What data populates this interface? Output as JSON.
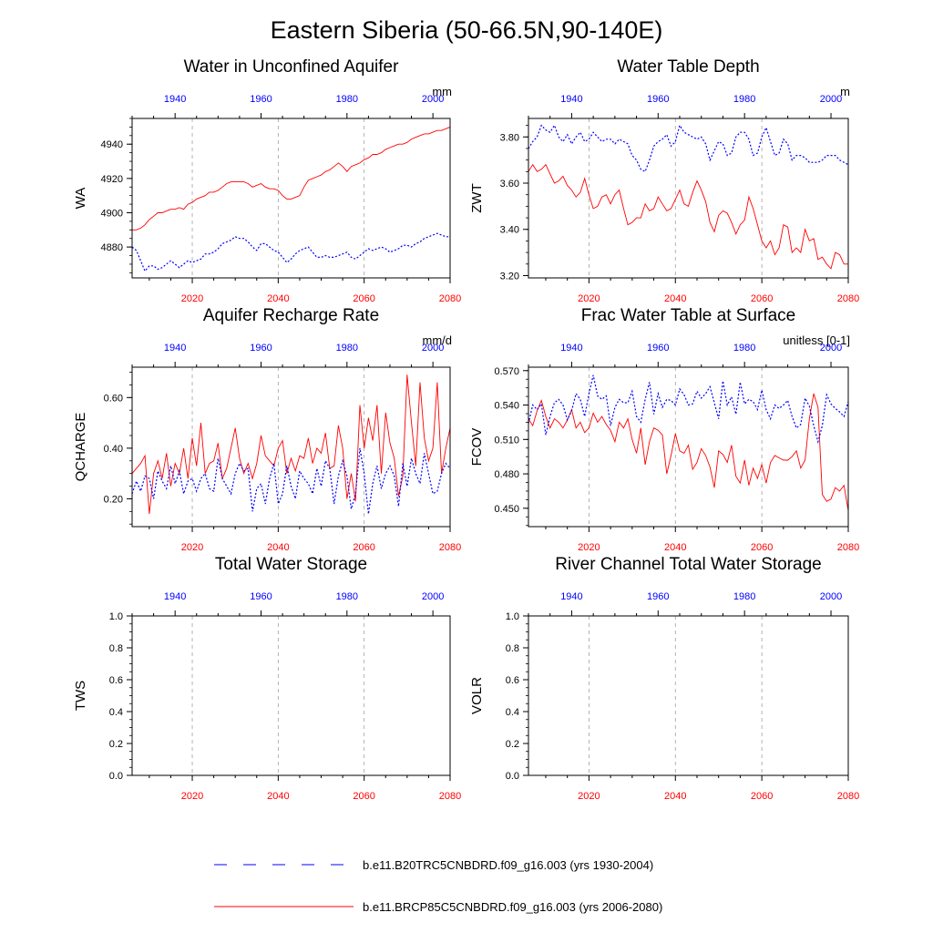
{
  "figure_title": "Eastern Siberia (50-66.5N,90-140E)",
  "colors": {
    "ctrl": "#0000ff",
    "rcp": "#ff0000",
    "axis": "#000000",
    "grid": "#a0a0a0"
  },
  "legend": [
    {
      "label": "b.e11.B20TRC5CNBDRD.f09_g16.003 (yrs 1930-2004)",
      "color": "#0000ff",
      "style": "dashed"
    },
    {
      "label": "b.e11.BRCP85C5CNBDRD.f09_g16.003 (yrs 2006-2080)",
      "color": "#ff0000",
      "style": "solid"
    }
  ],
  "chart_data": [
    {
      "type": "line",
      "title": "Water in Unconfined Aquifer",
      "ylabel": "WA",
      "units": "mm",
      "ylim": [
        4862,
        4955
      ],
      "yticks": [
        4880,
        4900,
        4920,
        4940
      ],
      "ytick_labels": [
        "4880",
        "4900",
        "4920",
        "4940"
      ],
      "x_bottom": {
        "range": [
          2006,
          2080
        ],
        "ticks": [
          2020,
          2040,
          2060,
          2080
        ],
        "labels": [
          "2020",
          "2040",
          "2060",
          "2080"
        ],
        "color": "#ff0000"
      },
      "x_top": {
        "range": [
          1930,
          2004
        ],
        "ticks": [
          1940,
          1960,
          1980,
          2000
        ],
        "labels": [
          "1940",
          "1960",
          "1980",
          "2000"
        ],
        "color": "#0000ff"
      },
      "series": [
        {
          "color": "#ff0000",
          "dash": "solid",
          "x_start": 2006,
          "values": [
            4890,
            4890,
            4891,
            4893,
            4896,
            4898,
            4900,
            4900,
            4901,
            4902,
            4902,
            4903,
            4902,
            4905,
            4906,
            4908,
            4909,
            4910,
            4912,
            4912,
            4913,
            4915,
            4917,
            4918,
            4918,
            4918,
            4918,
            4917,
            4915,
            4916,
            4917,
            4915,
            4914,
            4914,
            4913,
            4910,
            4908,
            4908,
            4909,
            4910,
            4915,
            4919,
            4920,
            4921,
            4922,
            4924,
            4925,
            4927,
            4929,
            4927,
            4924,
            4927,
            4928,
            4929,
            4931,
            4932,
            4934,
            4934,
            4935,
            4937,
            4938,
            4939,
            4940,
            4940,
            4941,
            4943,
            4944,
            4945,
            4946,
            4946,
            4947,
            4948,
            4948,
            4949,
            4950
          ]
        },
        {
          "color": "#0000ff",
          "dash": "dashed",
          "x_start": 1930,
          "values": [
            4880,
            4878,
            4872,
            4866,
            4869,
            4869,
            4867,
            4868,
            4870,
            4872,
            4870,
            4868,
            4870,
            4872,
            4871,
            4872,
            4873,
            4876,
            4876,
            4877,
            4879,
            4882,
            4883,
            4884,
            4886,
            4885,
            4885,
            4883,
            4880,
            4878,
            4882,
            4882,
            4880,
            4878,
            4877,
            4874,
            4871,
            4873,
            4876,
            4878,
            4879,
            4880,
            4877,
            4874,
            4874,
            4875,
            4874,
            4874,
            4875,
            4876,
            4877,
            4874,
            4873,
            4875,
            4877,
            4879,
            4878,
            4879,
            4880,
            4879,
            4877,
            4878,
            4879,
            4881,
            4881,
            4880,
            4882,
            4883,
            4885,
            4886,
            4887,
            4888,
            4887,
            4886,
            4886
          ]
        }
      ]
    },
    {
      "type": "line",
      "title": "Water Table Depth",
      "ylabel": "ZWT",
      "units": "m",
      "ylim": [
        3.19,
        3.88
      ],
      "yticks": [
        3.2,
        3.4,
        3.6,
        3.8
      ],
      "ytick_labels": [
        "3.20",
        "3.40",
        "3.60",
        "3.80"
      ],
      "x_bottom": {
        "range": [
          2006,
          2080
        ],
        "ticks": [
          2020,
          2040,
          2060,
          2080
        ],
        "labels": [
          "2020",
          "2040",
          "2060",
          "2080"
        ],
        "color": "#ff0000"
      },
      "x_top": {
        "range": [
          1930,
          2004
        ],
        "ticks": [
          1940,
          1960,
          1980,
          2000
        ],
        "labels": [
          "1940",
          "1960",
          "1980",
          "2000"
        ],
        "color": "#0000ff"
      },
      "series": [
        {
          "color": "#ff0000",
          "dash": "solid",
          "x_start": 2006,
          "values": [
            3.65,
            3.68,
            3.65,
            3.66,
            3.68,
            3.64,
            3.6,
            3.61,
            3.63,
            3.59,
            3.57,
            3.54,
            3.56,
            3.62,
            3.55,
            3.49,
            3.5,
            3.54,
            3.55,
            3.51,
            3.55,
            3.57,
            3.49,
            3.42,
            3.43,
            3.45,
            3.45,
            3.51,
            3.48,
            3.49,
            3.54,
            3.51,
            3.48,
            3.49,
            3.53,
            3.57,
            3.51,
            3.5,
            3.56,
            3.61,
            3.57,
            3.52,
            3.43,
            3.39,
            3.46,
            3.48,
            3.47,
            3.43,
            3.38,
            3.42,
            3.44,
            3.54,
            3.49,
            3.42,
            3.35,
            3.32,
            3.35,
            3.29,
            3.32,
            3.42,
            3.41,
            3.3,
            3.32,
            3.3,
            3.4,
            3.35,
            3.36,
            3.27,
            3.28,
            3.25,
            3.23,
            3.3,
            3.29,
            3.25,
            3.25
          ]
        },
        {
          "color": "#0000ff",
          "dash": "dashed",
          "x_start": 1930,
          "values": [
            3.75,
            3.78,
            3.8,
            3.85,
            3.83,
            3.82,
            3.85,
            3.8,
            3.78,
            3.81,
            3.77,
            3.8,
            3.82,
            3.78,
            3.79,
            3.82,
            3.8,
            3.78,
            3.79,
            3.79,
            3.77,
            3.79,
            3.78,
            3.77,
            3.72,
            3.7,
            3.66,
            3.65,
            3.7,
            3.76,
            3.78,
            3.79,
            3.81,
            3.76,
            3.78,
            3.85,
            3.82,
            3.81,
            3.8,
            3.79,
            3.8,
            3.77,
            3.7,
            3.74,
            3.78,
            3.77,
            3.72,
            3.73,
            3.8,
            3.82,
            3.82,
            3.79,
            3.72,
            3.73,
            3.8,
            3.84,
            3.78,
            3.72,
            3.73,
            3.79,
            3.77,
            3.7,
            3.72,
            3.72,
            3.71,
            3.69,
            3.69,
            3.69,
            3.7,
            3.72,
            3.72,
            3.72,
            3.7,
            3.69,
            3.68
          ]
        }
      ]
    },
    {
      "type": "line",
      "title": "Aquifer Recharge Rate",
      "ylabel": "QCHARGE",
      "units": "mm/d",
      "ylim": [
        0.09,
        0.72
      ],
      "yticks": [
        0.2,
        0.4,
        0.6
      ],
      "ytick_labels": [
        "0.20",
        "0.40",
        "0.60"
      ],
      "x_bottom": {
        "range": [
          2006,
          2080
        ],
        "ticks": [
          2020,
          2040,
          2060,
          2080
        ],
        "labels": [
          "2020",
          "2040",
          "2060",
          "2080"
        ],
        "color": "#ff0000"
      },
      "x_top": {
        "range": [
          1930,
          2004
        ],
        "ticks": [
          1940,
          1960,
          1980,
          2000
        ],
        "labels": [
          "1940",
          "1960",
          "1980",
          "2000"
        ],
        "color": "#0000ff"
      },
      "series": [
        {
          "color": "#ff0000",
          "dash": "solid",
          "x_start": 2006,
          "values": [
            0.3,
            0.32,
            0.34,
            0.37,
            0.14,
            0.3,
            0.35,
            0.28,
            0.38,
            0.25,
            0.34,
            0.3,
            0.4,
            0.28,
            0.44,
            0.33,
            0.5,
            0.3,
            0.34,
            0.35,
            0.42,
            0.28,
            0.32,
            0.4,
            0.48,
            0.36,
            0.3,
            0.34,
            0.28,
            0.34,
            0.45,
            0.37,
            0.35,
            0.33,
            0.4,
            0.43,
            0.3,
            0.36,
            0.31,
            0.37,
            0.36,
            0.44,
            0.34,
            0.4,
            0.38,
            0.46,
            0.32,
            0.33,
            0.49,
            0.4,
            0.2,
            0.3,
            0.19,
            0.57,
            0.4,
            0.52,
            0.43,
            0.57,
            0.3,
            0.54,
            0.42,
            0.36,
            0.21,
            0.29,
            0.69,
            0.5,
            0.33,
            0.66,
            0.44,
            0.35,
            0.4,
            0.66,
            0.3,
            0.4,
            0.48
          ]
        },
        {
          "color": "#0000ff",
          "dash": "dashed",
          "x_start": 1930,
          "values": [
            0.22,
            0.27,
            0.23,
            0.29,
            0.28,
            0.2,
            0.31,
            0.27,
            0.24,
            0.33,
            0.26,
            0.31,
            0.22,
            0.27,
            0.28,
            0.23,
            0.28,
            0.3,
            0.24,
            0.23,
            0.36,
            0.28,
            0.25,
            0.22,
            0.3,
            0.34,
            0.31,
            0.32,
            0.15,
            0.24,
            0.26,
            0.18,
            0.28,
            0.34,
            0.18,
            0.22,
            0.33,
            0.25,
            0.2,
            0.31,
            0.28,
            0.26,
            0.22,
            0.32,
            0.25,
            0.35,
            0.32,
            0.18,
            0.29,
            0.35,
            0.29,
            0.16,
            0.22,
            0.4,
            0.3,
            0.14,
            0.26,
            0.33,
            0.24,
            0.3,
            0.33,
            0.29,
            0.17,
            0.34,
            0.25,
            0.36,
            0.3,
            0.26,
            0.38,
            0.3,
            0.22,
            0.23,
            0.3,
            0.34,
            0.32
          ]
        }
      ]
    },
    {
      "type": "line",
      "title": "Frac Water Table at Surface",
      "ylabel": "FCOV",
      "units": "unitless [0-1]",
      "ylim": [
        0.434,
        0.573
      ],
      "yticks": [
        0.45,
        0.48,
        0.51,
        0.54,
        0.57
      ],
      "ytick_labels": [
        "0.450",
        "0.480",
        "0.510",
        "0.540",
        "0.570"
      ],
      "x_bottom": {
        "range": [
          2006,
          2080
        ],
        "ticks": [
          2020,
          2040,
          2060,
          2080
        ],
        "labels": [
          "2020",
          "2040",
          "2060",
          "2080"
        ],
        "color": "#ff0000"
      },
      "x_top": {
        "range": [
          1930,
          2004
        ],
        "ticks": [
          1940,
          1960,
          1980,
          2000
        ],
        "labels": [
          "1940",
          "1960",
          "1980",
          "2000"
        ],
        "color": "#0000ff"
      },
      "series": [
        {
          "color": "#ff0000",
          "dash": "solid",
          "x_start": 2006,
          "values": [
            0.528,
            0.522,
            0.535,
            0.544,
            0.53,
            0.52,
            0.528,
            0.525,
            0.52,
            0.527,
            0.536,
            0.52,
            0.525,
            0.516,
            0.52,
            0.533,
            0.525,
            0.53,
            0.523,
            0.518,
            0.508,
            0.525,
            0.52,
            0.528,
            0.51,
            0.498,
            0.52,
            0.488,
            0.508,
            0.52,
            0.518,
            0.514,
            0.48,
            0.496,
            0.515,
            0.5,
            0.498,
            0.505,
            0.484,
            0.49,
            0.502,
            0.496,
            0.486,
            0.468,
            0.5,
            0.497,
            0.49,
            0.505,
            0.478,
            0.472,
            0.492,
            0.47,
            0.485,
            0.476,
            0.488,
            0.472,
            0.49,
            0.496,
            0.494,
            0.492,
            0.492,
            0.495,
            0.5,
            0.485,
            0.492,
            0.528,
            0.55,
            0.538,
            0.462,
            0.456,
            0.458,
            0.468,
            0.465,
            0.47,
            0.448
          ]
        },
        {
          "color": "#0000ff",
          "dash": "dashed",
          "x_start": 1930,
          "values": [
            0.524,
            0.54,
            0.536,
            0.541,
            0.514,
            0.53,
            0.542,
            0.545,
            0.54,
            0.527,
            0.535,
            0.55,
            0.545,
            0.53,
            0.55,
            0.566,
            0.548,
            0.545,
            0.548,
            0.522,
            0.538,
            0.545,
            0.542,
            0.542,
            0.552,
            0.53,
            0.525,
            0.545,
            0.56,
            0.532,
            0.55,
            0.538,
            0.545,
            0.544,
            0.54,
            0.554,
            0.549,
            0.54,
            0.541,
            0.552,
            0.546,
            0.55,
            0.556,
            0.542,
            0.528,
            0.561,
            0.54,
            0.547,
            0.532,
            0.56,
            0.541,
            0.545,
            0.543,
            0.536,
            0.553,
            0.536,
            0.528,
            0.54,
            0.537,
            0.54,
            0.544,
            0.53,
            0.52,
            0.523,
            0.546,
            0.539,
            0.522,
            0.508,
            0.522,
            0.549,
            0.541,
            0.537,
            0.534,
            0.53,
            0.543
          ]
        }
      ]
    },
    {
      "type": "line",
      "title": "Total Water Storage",
      "ylabel": "TWS",
      "units": "",
      "ylim": [
        0,
        1
      ],
      "yticks": [
        0,
        0.2,
        0.4,
        0.6,
        0.8,
        1.0
      ],
      "ytick_labels": [
        "0.0",
        "0.2",
        "0.4",
        "0.6",
        "0.8",
        "1.0"
      ],
      "x_bottom": {
        "range": [
          2006,
          2080
        ],
        "ticks": [
          2020,
          2040,
          2060,
          2080
        ],
        "labels": [
          "2020",
          "2040",
          "2060",
          "2080"
        ],
        "color": "#ff0000"
      },
      "x_top": {
        "range": [
          1930,
          2004
        ],
        "ticks": [
          1940,
          1960,
          1980,
          2000
        ],
        "labels": [
          "1940",
          "1960",
          "1980",
          "2000"
        ],
        "color": "#0000ff"
      },
      "series": []
    },
    {
      "type": "line",
      "title": "River Channel Total Water Storage",
      "ylabel": "VOLR",
      "units": "",
      "ylim": [
        0,
        1
      ],
      "yticks": [
        0,
        0.2,
        0.4,
        0.6,
        0.8,
        1.0
      ],
      "ytick_labels": [
        "0.0",
        "0.2",
        "0.4",
        "0.6",
        "0.8",
        "1.0"
      ],
      "x_bottom": {
        "range": [
          2006,
          2080
        ],
        "ticks": [
          2020,
          2040,
          2060,
          2080
        ],
        "labels": [
          "2020",
          "2040",
          "2060",
          "2080"
        ],
        "color": "#ff0000"
      },
      "x_top": {
        "range": [
          1930,
          2004
        ],
        "ticks": [
          1940,
          1960,
          1980,
          2000
        ],
        "labels": [
          "1940",
          "1960",
          "1980",
          "2000"
        ],
        "color": "#0000ff"
      },
      "series": []
    }
  ]
}
